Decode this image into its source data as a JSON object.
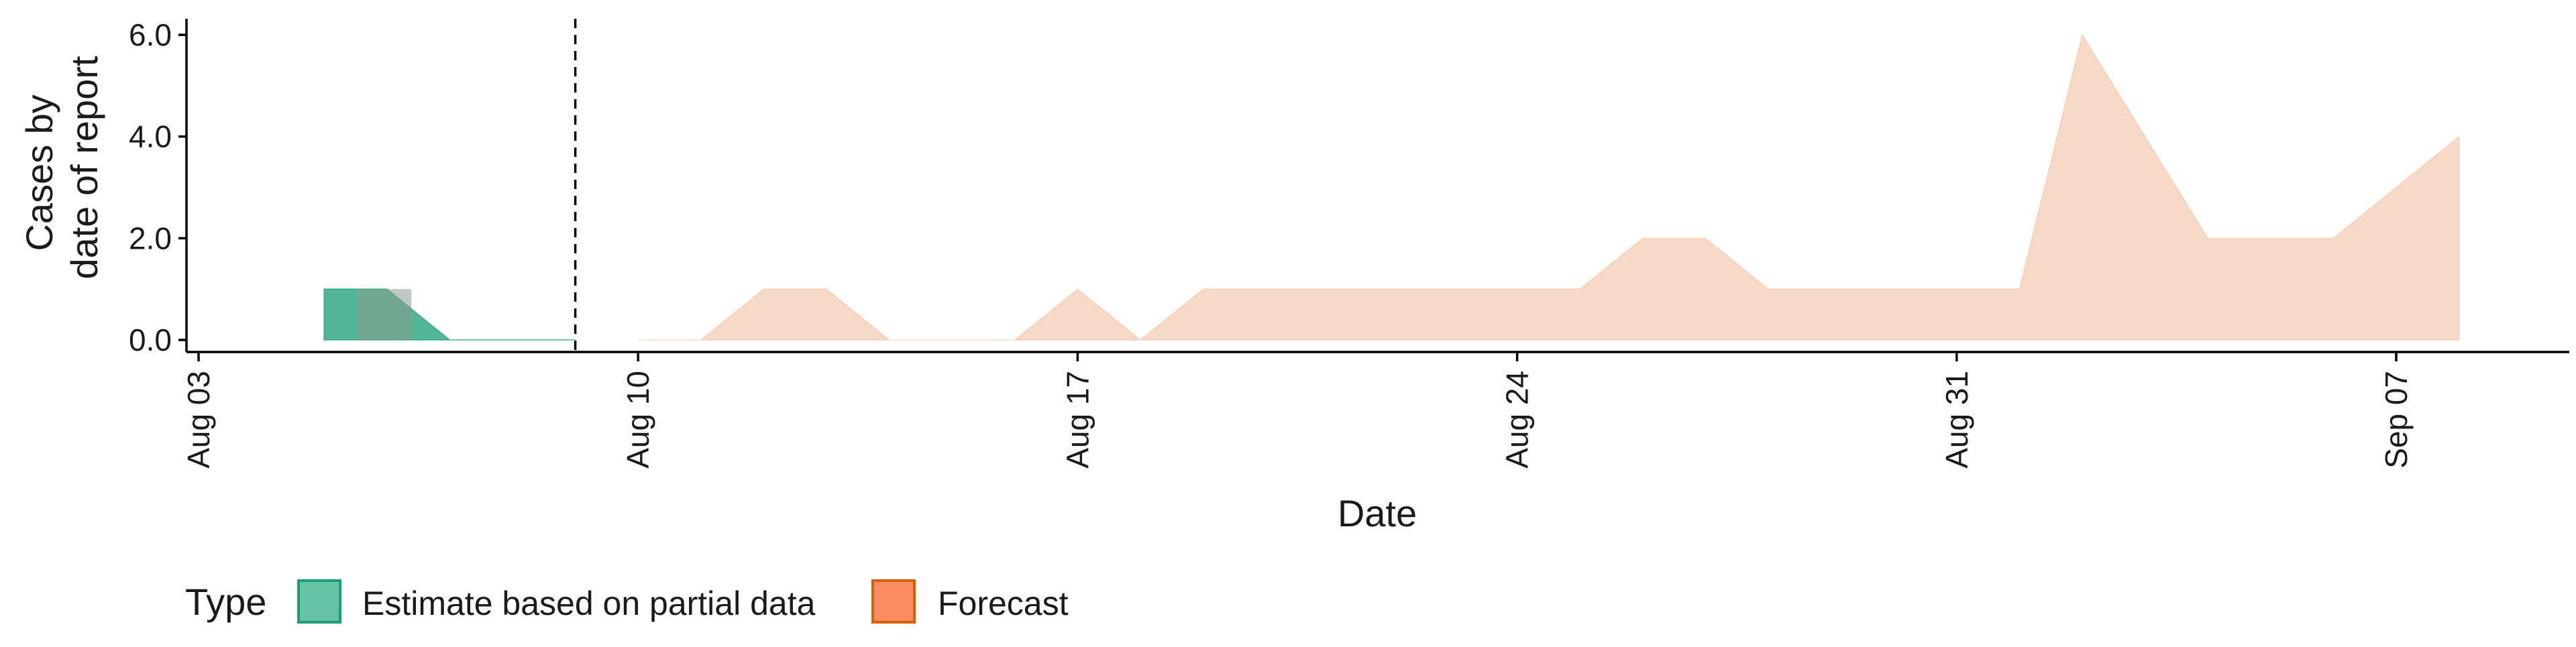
{
  "chart_data": {
    "type": "area",
    "xlabel": "Date",
    "ylabel": [
      "Cases by",
      "date of report"
    ],
    "ylim": [
      0,
      6
    ],
    "yticks": [
      "0.0",
      "2.0",
      "4.0",
      "6.0"
    ],
    "xticks": [
      "Aug 03",
      "Aug 10",
      "Aug 17",
      "Aug 24",
      "Aug 31",
      "Sep 07"
    ],
    "xtick_dates": [
      "2020-08-03",
      "2020-08-10",
      "2020-08-17",
      "2020-08-24",
      "2020-08-31",
      "2020-09-07"
    ],
    "reference_line_date": "2020-08-09",
    "legend": {
      "title": "Type",
      "position": "bottom-left",
      "entries": [
        {
          "label": "Estimate based on partial data",
          "fill": "#66c2a5",
          "stroke": "#1b9e77"
        },
        {
          "label": "Forecast",
          "fill": "#fc8d62",
          "stroke": "#d95f02"
        }
      ]
    },
    "series": [
      {
        "type_name": "Estimate based on partial data",
        "color": "#1b9e77",
        "bands": [
          {
            "opacity": 0.3,
            "dates": [
              "2020-08-05",
              "2020-08-06",
              "2020-08-07",
              "2020-08-08",
              "2020-08-09"
            ],
            "values": [
              1,
              1,
              0,
              0,
              0
            ]
          },
          {
            "opacity": 0.35,
            "dates": [
              "2020-08-05",
              "2020-08-06",
              "2020-08-07",
              "2020-08-08",
              "2020-08-09"
            ],
            "values": [
              1,
              1,
              0,
              0,
              0
            ]
          },
          {
            "opacity": 0.45,
            "dates": [
              "2020-08-05",
              "2020-08-06",
              "2020-08-07",
              "2020-08-08",
              "2020-08-09"
            ],
            "values": [
              1,
              1,
              0,
              0,
              0
            ]
          }
        ]
      },
      {
        "type_name": "Forecast",
        "color": "#e8a070",
        "bands": [
          {
            "opacity": 0.4,
            "dates": [
              "2020-08-10",
              "2020-08-11",
              "2020-08-12",
              "2020-08-13",
              "2020-08-14",
              "2020-08-15",
              "2020-08-16",
              "2020-08-17",
              "2020-08-18",
              "2020-08-19",
              "2020-08-20",
              "2020-08-21",
              "2020-08-22",
              "2020-08-23",
              "2020-08-24",
              "2020-08-25",
              "2020-08-26",
              "2020-08-27",
              "2020-08-28",
              "2020-08-29",
              "2020-08-30",
              "2020-08-31",
              "2020-09-01",
              "2020-09-02",
              "2020-09-03",
              "2020-09-04",
              "2020-09-05",
              "2020-09-06",
              "2020-09-07",
              "2020-09-08"
            ],
            "values": [
              0,
              0,
              1,
              1,
              0,
              0,
              0,
              1,
              0,
              1,
              1,
              1,
              1,
              1,
              1,
              1,
              2,
              2,
              1,
              1,
              1,
              1,
              1,
              6,
              4,
              2,
              2,
              2,
              3,
              4
            ]
          }
        ]
      }
    ]
  }
}
